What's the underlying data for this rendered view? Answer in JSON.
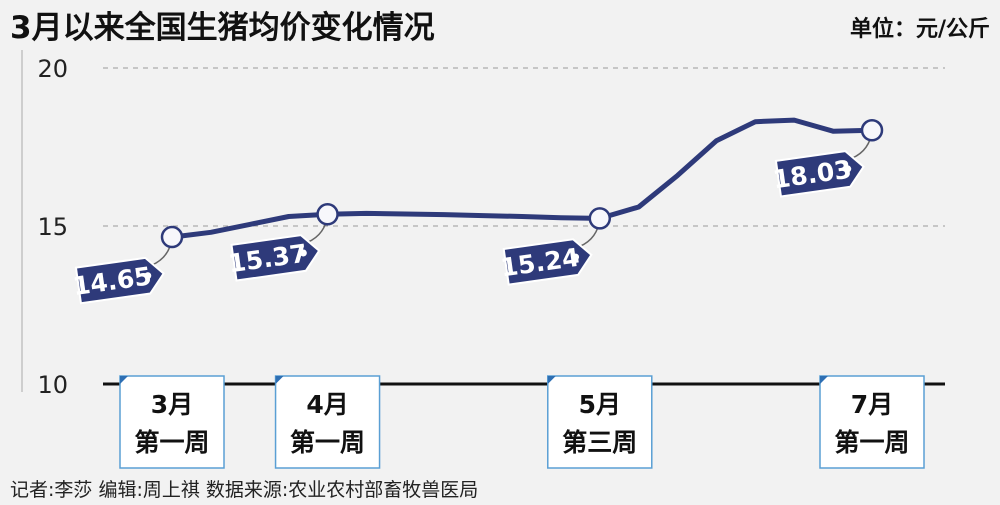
{
  "chart_data": {
    "type": "line",
    "title": "3月以来全国生猪均价变化情况",
    "unit": "单位：元/公斤",
    "ylim": [
      10,
      20
    ],
    "yticks": [
      10,
      15,
      20
    ],
    "grid": true,
    "series": [
      {
        "x": [
          0,
          1,
          2,
          3,
          4,
          5,
          6,
          7,
          8,
          9,
          10,
          11,
          12,
          13,
          14,
          15,
          16,
          17,
          18
        ],
        "values": [
          14.65,
          14.8,
          15.05,
          15.3,
          15.37,
          15.4,
          15.38,
          15.36,
          15.33,
          15.3,
          15.26,
          15.24,
          15.6,
          16.6,
          17.7,
          18.3,
          18.35,
          18.0,
          18.03
        ]
      }
    ],
    "callouts": [
      {
        "index": 0,
        "label": "14.65"
      },
      {
        "index": 4,
        "label": "15.37"
      },
      {
        "index": 11,
        "label": "15.24"
      },
      {
        "index": 18,
        "label": "18.03"
      }
    ],
    "period_markers": [
      {
        "index": 0,
        "line1": "3月",
        "line2": "第一周"
      },
      {
        "index": 4,
        "line1": "4月",
        "line2": "第一周"
      },
      {
        "index": 11,
        "line1": "5月",
        "line2": "第三周"
      },
      {
        "index": 18,
        "line1": "7月",
        "line2": "第一周"
      }
    ],
    "line_color": "#2e3a7a",
    "tag_color": "#2e3a7a"
  },
  "footer": {
    "credits": "记者:李莎   编辑:周上祺    数据来源:农业农村部畜牧兽医局"
  }
}
